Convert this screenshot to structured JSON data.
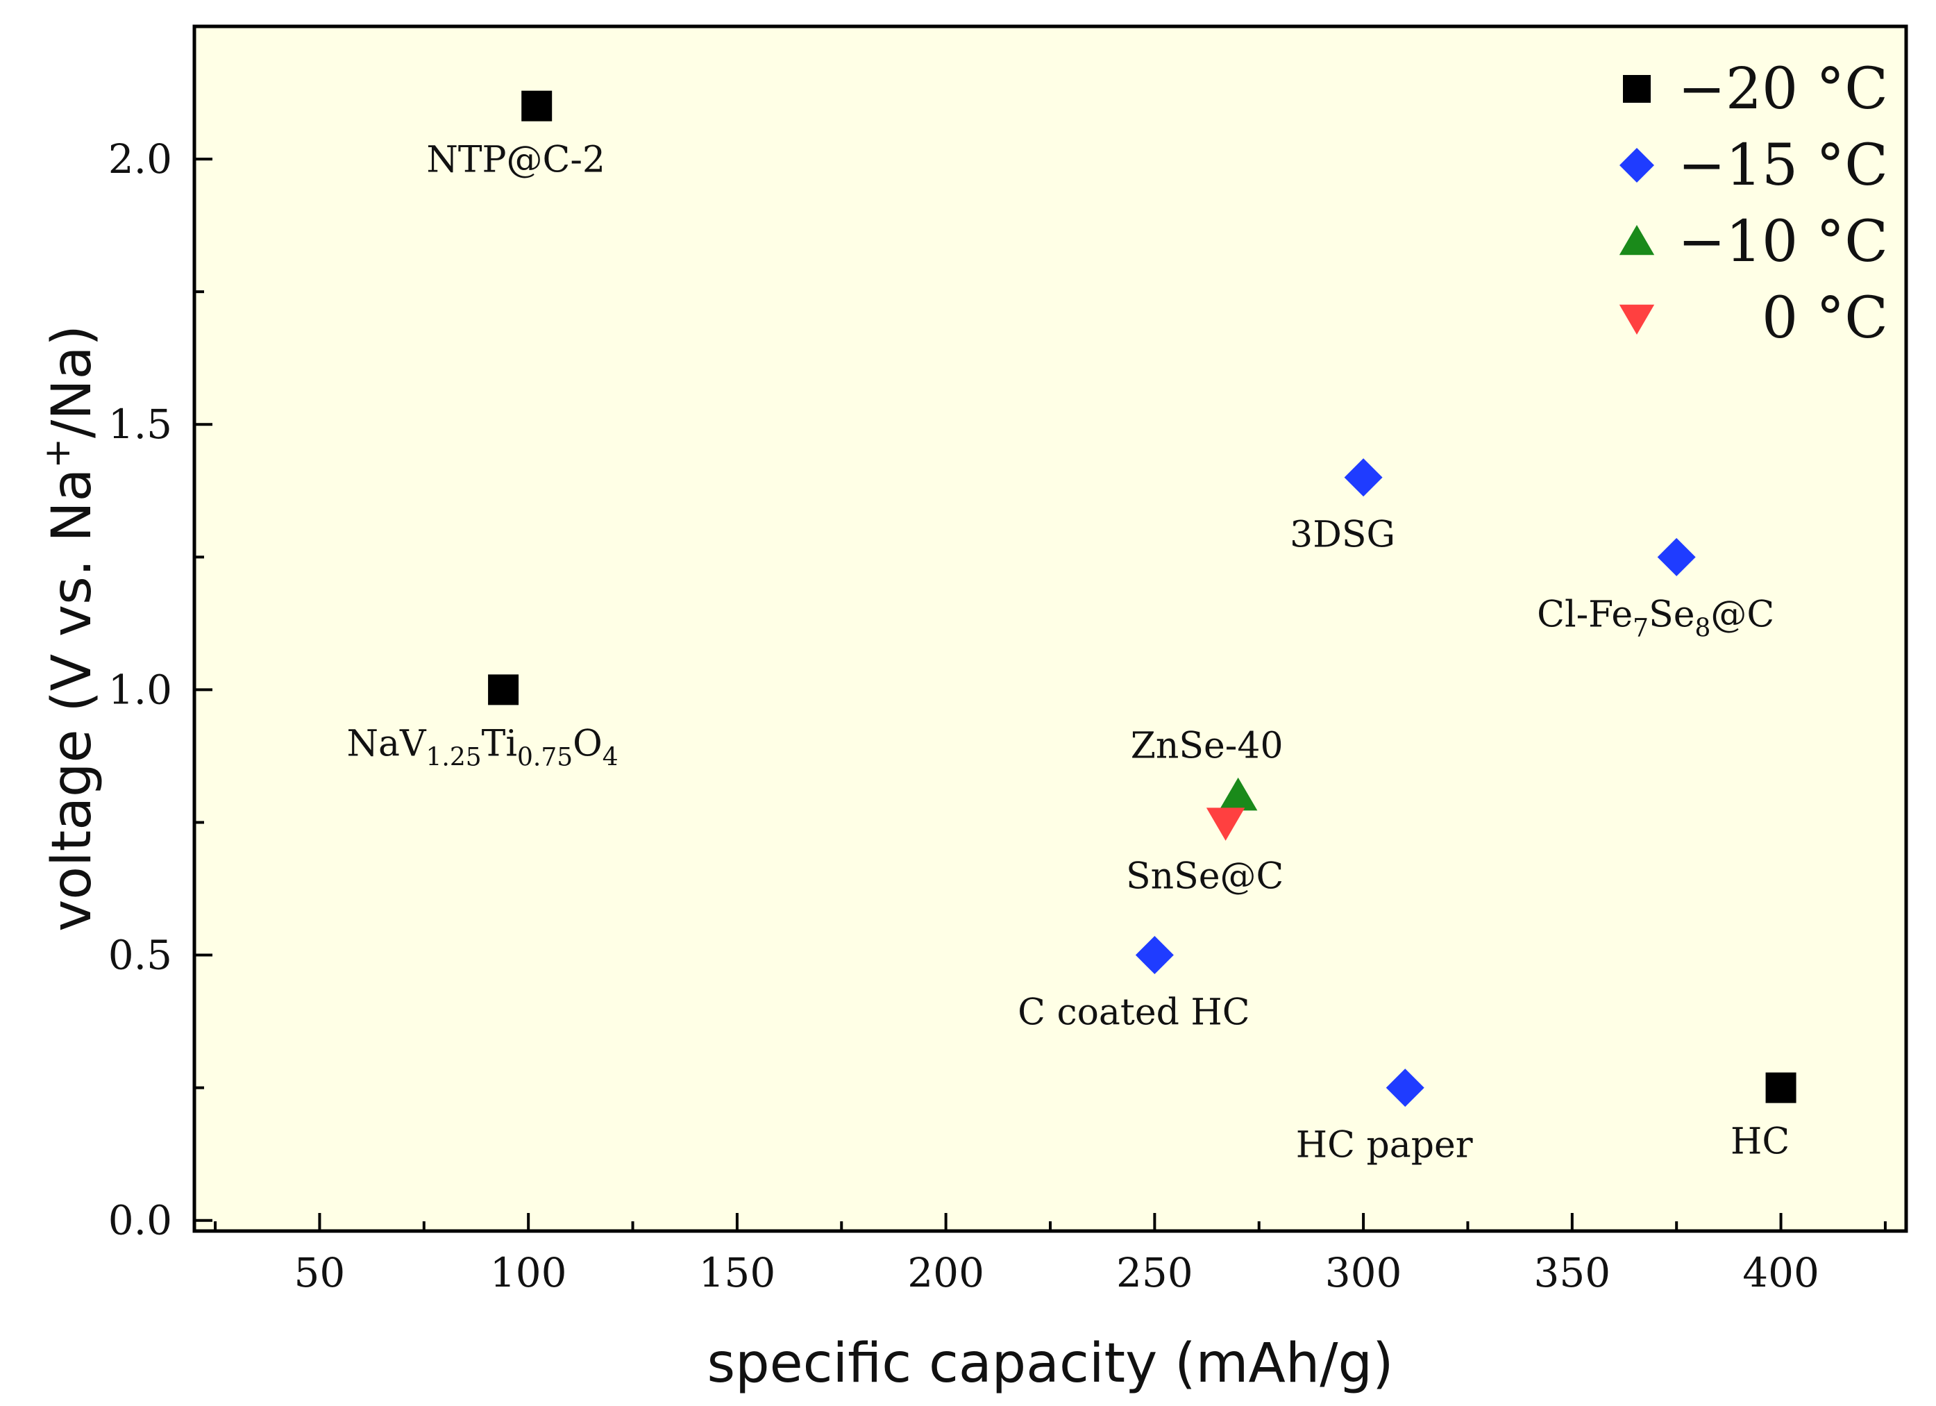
{
  "chart_data": {
    "type": "scatter",
    "title": "",
    "xlabel": "specific capacity (mAh/g)",
    "ylabel": {
      "pre": "voltage (V vs. Na",
      "sup": "+",
      "post": "/Na)"
    },
    "xlim": [
      20,
      430
    ],
    "ylim": [
      -0.02,
      2.25
    ],
    "xticks": [
      50,
      100,
      150,
      200,
      250,
      300,
      350,
      400
    ],
    "yticks": [
      0.0,
      0.5,
      1.0,
      1.5,
      2.0
    ],
    "ytick_labels": [
      "0.0",
      "0.5",
      "1.0",
      "1.5",
      "2.0"
    ],
    "grid": false,
    "background": "#ffffe6",
    "legend_position": "top-right",
    "series": [
      {
        "name": "−20 °C",
        "marker": "square",
        "color": "#000000",
        "points": [
          {
            "x": 102,
            "y": 2.1,
            "label": [
              {
                "t": "NTP@C-2"
              }
            ]
          },
          {
            "x": 94,
            "y": 1.0,
            "label": [
              {
                "t": "NaV"
              },
              {
                "t": "1.25",
                "sub": true
              },
              {
                "t": "Ti"
              },
              {
                "t": "0.75",
                "sub": true
              },
              {
                "t": "O"
              },
              {
                "t": "4",
                "sub": true
              }
            ]
          },
          {
            "x": 400,
            "y": 0.25,
            "label": [
              {
                "t": "HC"
              }
            ]
          }
        ]
      },
      {
        "name": "−15 °C",
        "marker": "diamond",
        "color": "#1f3cff",
        "points": [
          {
            "x": 300,
            "y": 1.4,
            "label": [
              {
                "t": "3DSG"
              }
            ]
          },
          {
            "x": 375,
            "y": 1.25,
            "label": [
              {
                "t": "Cl-Fe"
              },
              {
                "t": "7",
                "sub": true
              },
              {
                "t": "Se"
              },
              {
                "t": "8",
                "sub": true
              },
              {
                "t": "@C"
              }
            ]
          },
          {
            "x": 250,
            "y": 0.5,
            "label": [
              {
                "t": "C coated HC"
              }
            ]
          },
          {
            "x": 310,
            "y": 0.25,
            "label": [
              {
                "t": "HC paper"
              }
            ]
          }
        ]
      },
      {
        "name": "−10 °C",
        "marker": "triangle-up",
        "color": "#1a8a1a",
        "points": [
          {
            "x": 270,
            "y": 0.8,
            "label": [
              {
                "t": "ZnSe-40"
              }
            ]
          }
        ]
      },
      {
        "name": "0 °C",
        "marker": "triangle-down",
        "color": "#ff4040",
        "points": [
          {
            "x": 267,
            "y": 0.75,
            "label": [
              {
                "t": "SnSe@C"
              }
            ]
          }
        ]
      }
    ]
  }
}
